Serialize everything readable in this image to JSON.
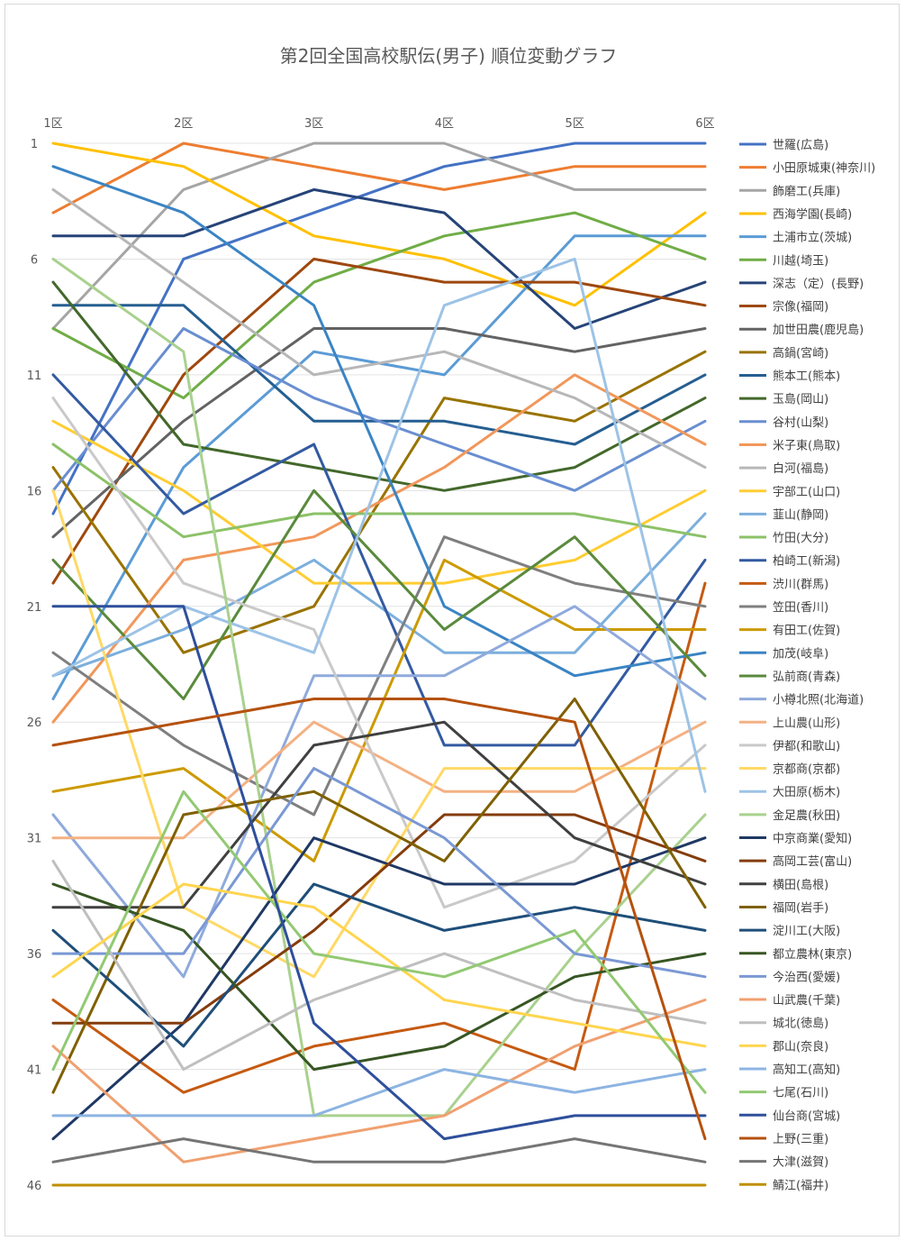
{
  "chart_data": {
    "type": "line",
    "title": "第2回全国高校駅伝(男子) 順位変動グラフ",
    "categories": [
      "1区",
      "2区",
      "3区",
      "4区",
      "5区",
      "6区"
    ],
    "y_tick_labels": [
      "1",
      "6",
      "11",
      "16",
      "21",
      "26",
      "31",
      "36",
      "41",
      "46"
    ],
    "y_tick_values": [
      1,
      6,
      11,
      16,
      21,
      26,
      31,
      36,
      41,
      46
    ],
    "ylim": [
      1,
      46
    ],
    "y_reversed": true,
    "grid": "horizontal",
    "legend_position": "right",
    "series": [
      {
        "name": "世羅(広島)",
        "color": "#4472C4",
        "values": [
          17,
          6,
          4,
          2,
          1,
          1
        ]
      },
      {
        "name": "小田原城東(神奈川)",
        "color": "#ED7D31",
        "values": [
          4,
          1,
          2,
          3,
          2,
          2
        ]
      },
      {
        "name": "飾磨工(兵庫)",
        "color": "#A5A5A5",
        "values": [
          9,
          3,
          1,
          1,
          3,
          3
        ]
      },
      {
        "name": "西海学園(長崎)",
        "color": "#FFC000",
        "values": [
          1,
          2,
          5,
          6,
          8,
          4
        ]
      },
      {
        "name": "土浦市立(茨城)",
        "color": "#5B9BD5",
        "values": [
          25,
          15,
          10,
          11,
          5,
          5
        ]
      },
      {
        "name": "川越(埼玉)",
        "color": "#70AD47",
        "values": [
          9,
          12,
          7,
          5,
          4,
          6
        ]
      },
      {
        "name": "深志（定）(長野)",
        "color": "#264478",
        "values": [
          5,
          5,
          3,
          4,
          9,
          7
        ]
      },
      {
        "name": "宗像(福岡)",
        "color": "#9E480E",
        "values": [
          20,
          11,
          6,
          7,
          7,
          8
        ]
      },
      {
        "name": "加世田農(鹿児島)",
        "color": "#636363",
        "values": [
          18,
          13,
          9,
          9,
          10,
          9
        ]
      },
      {
        "name": "高鍋(宮崎)",
        "color": "#997300",
        "values": [
          15,
          23,
          21,
          12,
          13,
          10
        ]
      },
      {
        "name": "熊本工(熊本)",
        "color": "#255E91",
        "values": [
          8,
          8,
          13,
          13,
          14,
          11
        ]
      },
      {
        "name": "玉島(岡山)",
        "color": "#43682B",
        "values": [
          7,
          14,
          15,
          16,
          15,
          12
        ]
      },
      {
        "name": "谷村(山梨)",
        "color": "#698ED0",
        "values": [
          16,
          9,
          12,
          14,
          16,
          13
        ]
      },
      {
        "name": "米子東(鳥取)",
        "color": "#F1975A",
        "values": [
          26,
          19,
          18,
          15,
          11,
          14
        ]
      },
      {
        "name": "白河(福島)",
        "color": "#B7B7B7",
        "values": [
          3,
          7,
          11,
          10,
          12,
          15
        ]
      },
      {
        "name": "宇部工(山口)",
        "color": "#FFCD33",
        "values": [
          13,
          16,
          20,
          20,
          19,
          16
        ]
      },
      {
        "name": "韮山(静岡)",
        "color": "#7CAFDD",
        "values": [
          24,
          22,
          19,
          23,
          23,
          17
        ]
      },
      {
        "name": "竹田(大分)",
        "color": "#8CC168",
        "values": [
          14,
          18,
          17,
          17,
          17,
          18
        ]
      },
      {
        "name": "柏崎工(新潟)",
        "color": "#335AA1",
        "values": [
          11,
          17,
          14,
          27,
          27,
          19
        ]
      },
      {
        "name": "渋川(群馬)",
        "color": "#C55A11",
        "values": [
          38,
          42,
          40,
          39,
          41,
          20
        ]
      },
      {
        "name": "笠田(香川)",
        "color": "#7F7F7F",
        "values": [
          23,
          27,
          30,
          18,
          20,
          21
        ]
      },
      {
        "name": "有田工(佐賀)",
        "color": "#CC9A00",
        "values": [
          29,
          28,
          32,
          19,
          22,
          22
        ]
      },
      {
        "name": "加茂(岐阜)",
        "color": "#3A84C4",
        "values": [
          2,
          4,
          8,
          21,
          24,
          23
        ]
      },
      {
        "name": "弘前商(青森)",
        "color": "#5A8A3C",
        "values": [
          19,
          25,
          16,
          22,
          18,
          24
        ]
      },
      {
        "name": "小樽北照(北海道)",
        "color": "#8FAADC",
        "values": [
          30,
          37,
          24,
          24,
          21,
          25
        ]
      },
      {
        "name": "上山農(山形)",
        "color": "#F4B183",
        "values": [
          31,
          31,
          26,
          29,
          29,
          26
        ]
      },
      {
        "name": "伊都(和歌山)",
        "color": "#C9C9C9",
        "values": [
          12,
          20,
          22,
          34,
          32,
          27
        ]
      },
      {
        "name": "京都商(京都)",
        "color": "#FFD966",
        "values": [
          16,
          34,
          37,
          28,
          28,
          28
        ]
      },
      {
        "name": "大田原(栃木)",
        "color": "#9DC3E6",
        "values": [
          24,
          21,
          23,
          8,
          6,
          29
        ]
      },
      {
        "name": "金足農(秋田)",
        "color": "#A9D18E",
        "values": [
          6,
          10,
          43,
          43,
          36,
          30
        ]
      },
      {
        "name": "中京商業(愛知)",
        "color": "#1F3864",
        "values": [
          44,
          39,
          31,
          33,
          33,
          31
        ]
      },
      {
        "name": "高岡工芸(富山)",
        "color": "#843C0C",
        "values": [
          39,
          39,
          35,
          30,
          30,
          32
        ]
      },
      {
        "name": "横田(島根)",
        "color": "#404040",
        "values": [
          34,
          34,
          27,
          26,
          31,
          33
        ]
      },
      {
        "name": "福岡(岩手)",
        "color": "#7F6000",
        "values": [
          42,
          30,
          29,
          32,
          25,
          34
        ]
      },
      {
        "name": "淀川工(大阪)",
        "color": "#1F4E79",
        "values": [
          35,
          40,
          33,
          35,
          34,
          35
        ]
      },
      {
        "name": "都立農林(東京)",
        "color": "#375623",
        "values": [
          33,
          35,
          41,
          40,
          37,
          36
        ]
      },
      {
        "name": "今治西(愛媛)",
        "color": "#7A98D4",
        "values": [
          36,
          36,
          28,
          31,
          36,
          37
        ]
      },
      {
        "name": "山武農(千葉)",
        "color": "#F0A070",
        "values": [
          40,
          45,
          44,
          43,
          40,
          38
        ]
      },
      {
        "name": "城北(徳島)",
        "color": "#BFBFBF",
        "values": [
          32,
          41,
          38,
          36,
          38,
          39
        ]
      },
      {
        "name": "郡山(奈良)",
        "color": "#FFD54F",
        "values": [
          37,
          33,
          34,
          38,
          39,
          40
        ]
      },
      {
        "name": "高知工(高知)",
        "color": "#8DB4E2",
        "values": [
          43,
          43,
          43,
          41,
          42,
          41
        ]
      },
      {
        "name": "七尾(石川)",
        "color": "#92C972",
        "values": [
          41,
          29,
          36,
          37,
          35,
          42
        ]
      },
      {
        "name": "仙台商(宮城)",
        "color": "#2E4F9B",
        "values": [
          21,
          21,
          39,
          44,
          43,
          43
        ]
      },
      {
        "name": "上野(三重)",
        "color": "#B5510D",
        "values": [
          27,
          26,
          25,
          25,
          26,
          44
        ]
      },
      {
        "name": "大津(滋賀)",
        "color": "#757575",
        "values": [
          45,
          44,
          45,
          45,
          44,
          45
        ]
      },
      {
        "name": "鯖江(福井)",
        "color": "#BF8F00",
        "values": [
          46,
          46,
          46,
          46,
          46,
          46
        ]
      }
    ]
  }
}
